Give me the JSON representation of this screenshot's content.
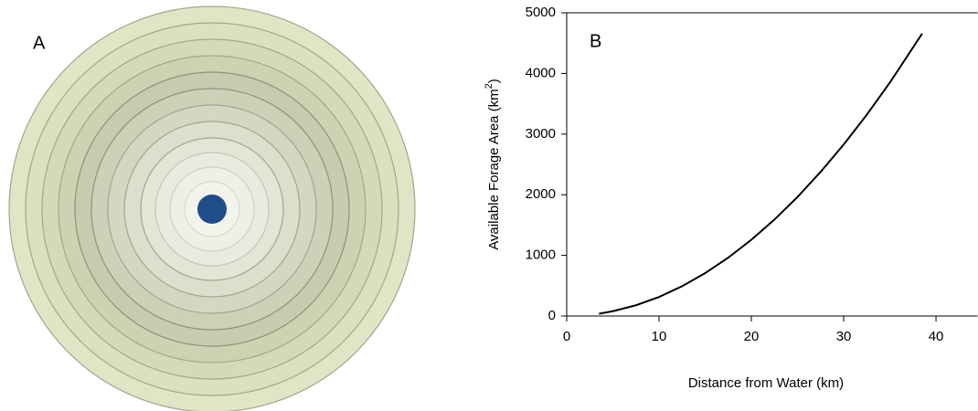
{
  "panel_a": {
    "label": "A"
  },
  "chart_data": {
    "type": "line",
    "panel_label": "B",
    "x_label": "Distance from Water (km)",
    "y_label": [
      "Available Forage Area (km",
      "2",
      ")"
    ],
    "x": [
      3.5,
      5,
      7.5,
      10,
      12.5,
      15,
      17.5,
      20,
      22.5,
      25,
      27.5,
      30,
      32.5,
      35,
      38.5
    ],
    "values": [
      38,
      79,
      177,
      314,
      491,
      707,
      962,
      1257,
      1590,
      1963,
      2376,
      2827,
      3318,
      3848,
      4657
    ],
    "color": "#000000",
    "xlim": [
      0,
      44.5
    ],
    "xticks": [
      0,
      10,
      20,
      30,
      40
    ],
    "ylim": [
      0,
      5000
    ],
    "yticks": [
      0,
      1000,
      2000,
      3000,
      4000,
      5000
    ]
  }
}
